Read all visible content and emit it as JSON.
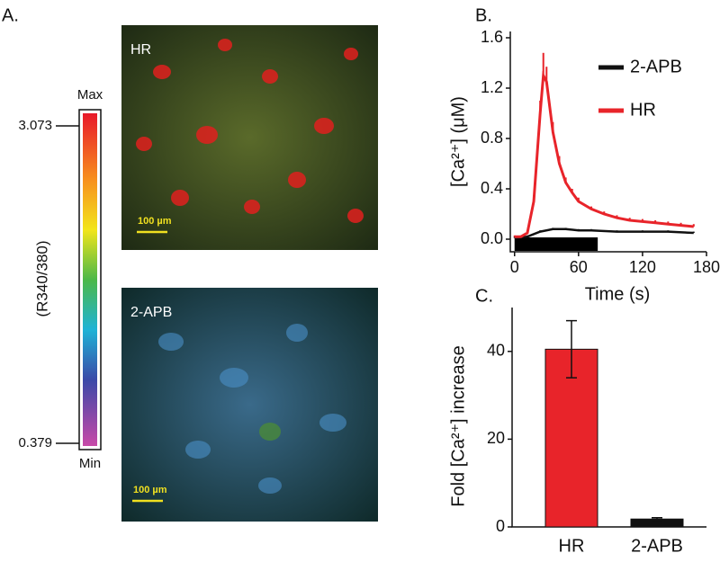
{
  "panel_labels": [
    "A.",
    "B.",
    "C."
  ],
  "panel_a": {
    "top_image_label": "HR",
    "bottom_image_label": "2-APB",
    "scale_bar_top": "100 µm",
    "scale_bar_bottom": "100 µm",
    "colorbar_max_label": "Max",
    "colorbar_min_label": "Min",
    "colorbar_max_value": "3.073",
    "colorbar_min_value": "0.379",
    "colorbar_title": "(R340/380)"
  },
  "chart_data": [
    {
      "type": "line",
      "xlabel": "Time (s)",
      "ylabel": "[Ca²⁺] (μM)",
      "xlim": [
        -4,
        180
      ],
      "xticks": [
        0,
        60,
        120,
        180
      ],
      "ylim": [
        -0.1,
        1.65
      ],
      "yticks": [
        {
          "value": 0,
          "label": "0.0"
        },
        0.4,
        0.8,
        1.2,
        1.6
      ],
      "legend": "top-right",
      "shaded_interval": [
        0,
        78
      ],
      "series": [
        {
          "name": "2-APB",
          "color": "#111111",
          "x": [
            0,
            12,
            24,
            36,
            48,
            60,
            72,
            96,
            120,
            144,
            168
          ],
          "values": [
            0.01,
            0.02,
            0.06,
            0.08,
            0.08,
            0.07,
            0.07,
            0.06,
            0.06,
            0.06,
            0.05
          ],
          "errors": [
            0.01,
            0.01,
            0.01,
            0.01,
            0.01,
            0.01,
            0.01,
            0.01,
            0.01,
            0.01,
            0.01
          ]
        },
        {
          "name": "HR",
          "color": "#e8242a",
          "x": [
            0,
            6,
            12,
            18,
            24,
            27,
            30,
            36,
            42,
            48,
            54,
            60,
            72,
            84,
            96,
            108,
            120,
            132,
            144,
            156,
            168
          ],
          "values": [
            0.02,
            0.02,
            0.05,
            0.3,
            1.0,
            1.3,
            1.25,
            0.85,
            0.6,
            0.45,
            0.37,
            0.3,
            0.24,
            0.2,
            0.17,
            0.15,
            0.14,
            0.13,
            0.12,
            0.11,
            0.1
          ],
          "errors": [
            0.01,
            0.01,
            0.02,
            0.05,
            0.1,
            0.18,
            0.12,
            0.08,
            0.06,
            0.04,
            0.03,
            0.03,
            0.02,
            0.02,
            0.02,
            0.02,
            0.02,
            0.02,
            0.02,
            0.02,
            0.02
          ]
        }
      ]
    },
    {
      "type": "bar",
      "ylabel": "Fold [Ca²⁺] increase",
      "categories": [
        "HR",
        "2-APB"
      ],
      "values": [
        40.5,
        1.8
      ],
      "errors": [
        6.5,
        0.3
      ],
      "colors": [
        "#e8242a",
        "#111111"
      ],
      "ylim": [
        0,
        50
      ],
      "yticks": [
        0,
        20,
        40
      ]
    }
  ]
}
